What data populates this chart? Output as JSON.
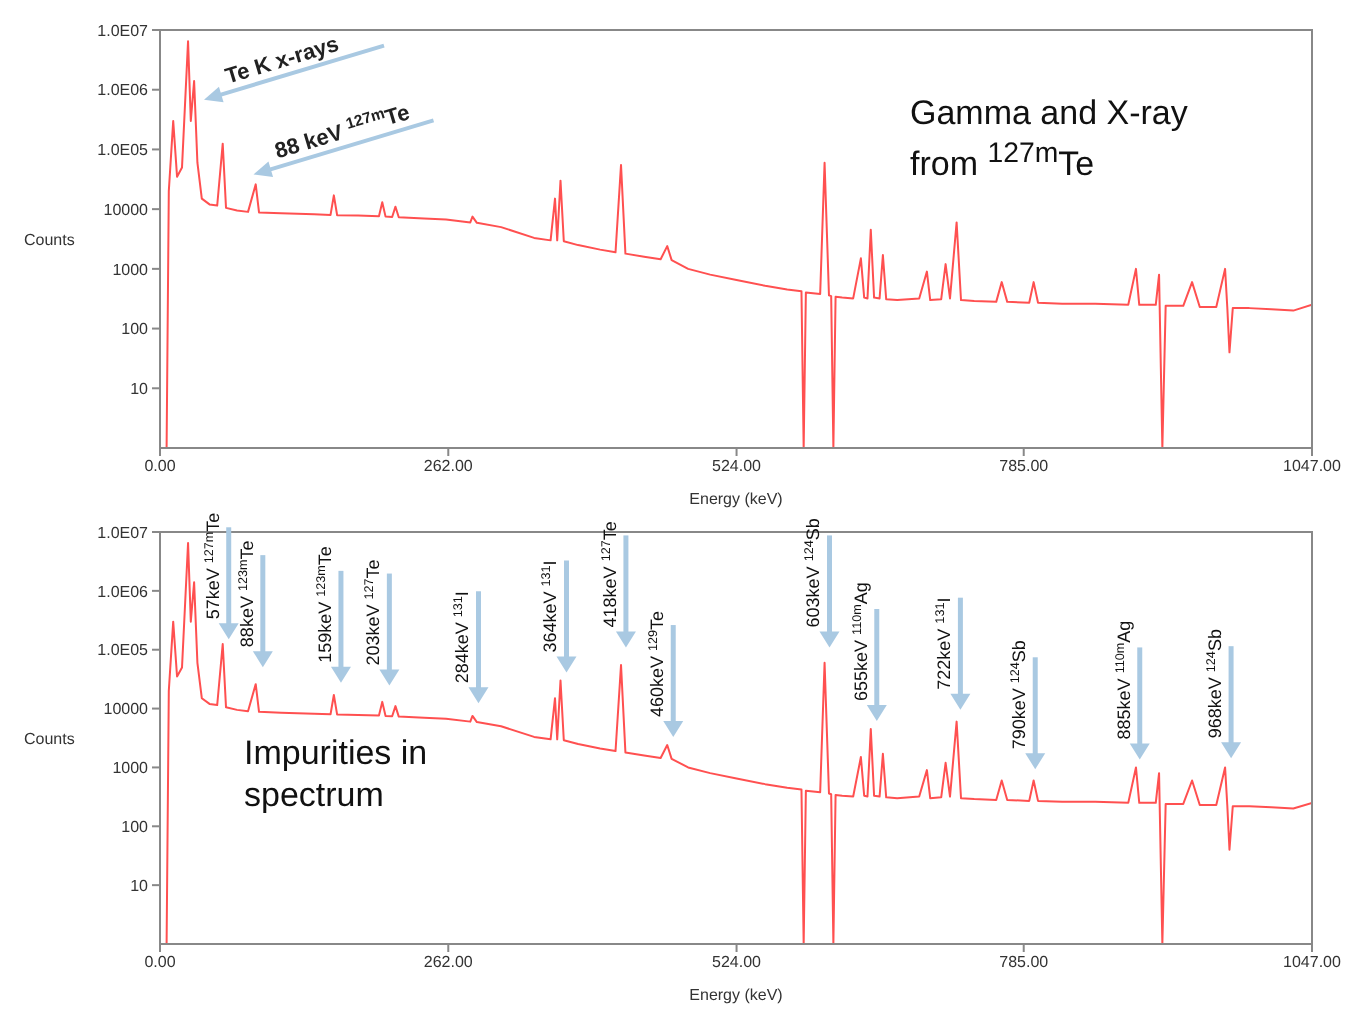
{
  "chart_data": [
    {
      "type": "line",
      "xlabel": "Energy (keV)",
      "ylabel": "Counts",
      "log": "y",
      "xlim": [
        0,
        1047
      ],
      "ylim": [
        1,
        10000000
      ],
      "xticks": [
        {
          "value": 0,
          "label": "0.00"
        },
        {
          "value": 262,
          "label": "262.00"
        },
        {
          "value": 524,
          "label": "524.00"
        },
        {
          "value": 785,
          "label": "785.00"
        },
        {
          "value": 1047,
          "label": "1047.00"
        }
      ],
      "yticks": [
        10,
        100,
        1000,
        10000,
        {
          "value": 100000,
          "label": "1.0E05"
        },
        {
          "value": 1000000,
          "label": "1.0E06"
        },
        {
          "value": 10000000,
          "label": "1.0E07"
        }
      ],
      "series": [
        {
          "color": "#ff5050",
          "x": [
            0,
            6,
            8,
            12,
            15.5,
            20,
            25.5,
            28,
            31,
            34,
            38,
            45,
            52,
            57,
            60,
            70,
            80,
            87,
            90,
            110,
            140,
            155,
            158,
            161,
            180,
            199,
            202,
            205,
            211,
            214,
            217,
            240,
            260,
            282,
            284,
            288,
            310,
            340,
            355,
            359,
            361,
            364,
            367,
            380,
            400,
            414,
            419,
            423,
            440,
            455,
            461,
            465,
            480,
            500,
            524,
            550,
            570,
            583,
            585,
            587,
            600,
            604,
            608,
            610,
            612,
            614,
            620,
            630,
            637,
            640,
            643,
            646,
            649,
            654,
            657,
            660,
            670,
            690,
            697,
            700,
            710,
            714,
            718,
            724,
            728,
            740,
            760,
            765,
            770,
            790,
            794,
            798,
            820,
            850,
            880,
            887,
            890,
            905,
            908,
            911,
            914,
            930,
            938,
            945,
            960,
            968,
            970,
            972,
            975,
            990,
            1010,
            1030,
            1047
          ],
          "values": [
            1,
            1,
            20000,
            300000,
            35000,
            50000,
            6500000,
            300000,
            1400000,
            60000,
            15000,
            12000,
            11500,
            125000,
            10500,
            9500,
            9000,
            26000,
            8800,
            8500,
            8200,
            8000,
            17000,
            7900,
            7800,
            7600,
            13000,
            7500,
            7400,
            11000,
            7300,
            7000,
            6700,
            6000,
            7500,
            5900,
            5000,
            3300,
            3000,
            15000,
            3000,
            30000,
            2900,
            2500,
            2100,
            1900,
            55000,
            1800,
            1600,
            1450,
            2400,
            1400,
            1000,
            800,
            650,
            520,
            450,
            420,
            1,
            400,
            380,
            60000,
            360,
            350,
            1,
            340,
            330,
            320,
            1500,
            330,
            320,
            4500,
            330,
            320,
            1700,
            310,
            300,
            320,
            900,
            300,
            310,
            1200,
            320,
            6000,
            300,
            290,
            280,
            600,
            280,
            270,
            600,
            270,
            260,
            260,
            250,
            1000,
            250,
            250,
            800,
            1,
            240,
            240,
            600,
            230,
            230,
            1000,
            230,
            40,
            220,
            220,
            210,
            200,
            250
          ]
        }
      ],
      "annotations": [
        {
          "text": "Te K x-rays",
          "x": 40,
          "y": 500000
        },
        {
          "text": "88 keV $^{127m}$Te",
          "x": 85,
          "y": 28000
        },
        "Gamma and X-ray from $^{127m}$Te"
      ]
    },
    {
      "type": "line",
      "xlabel": "Energy (keV)",
      "ylabel": "Counts",
      "log": "y",
      "xlim": [
        0,
        1047
      ],
      "ylim": [
        1,
        10000000
      ],
      "xticks": [
        {
          "value": 0,
          "label": "0.00"
        },
        {
          "value": 262,
          "label": "262.00"
        },
        {
          "value": 524,
          "label": "524.00"
        },
        {
          "value": 785,
          "label": "785.00"
        },
        {
          "value": 1047,
          "label": "1047.00"
        }
      ],
      "yticks": [
        10,
        100,
        1000,
        10000,
        {
          "value": 100000,
          "label": "1.0E05"
        },
        {
          "value": 1000000,
          "label": "1.0E06"
        },
        {
          "value": 10000000,
          "label": "1.0E07"
        }
      ],
      "series": [
        {
          "color": "#ff5050",
          "x": [
            0,
            6,
            8,
            12,
            15.5,
            20,
            25.5,
            28,
            31,
            34,
            38,
            45,
            52,
            57,
            60,
            70,
            80,
            87,
            90,
            110,
            140,
            155,
            158,
            161,
            180,
            199,
            202,
            205,
            211,
            214,
            217,
            240,
            260,
            282,
            284,
            288,
            310,
            340,
            355,
            359,
            361,
            364,
            367,
            380,
            400,
            414,
            419,
            423,
            440,
            455,
            461,
            465,
            480,
            500,
            524,
            550,
            570,
            583,
            585,
            587,
            600,
            604,
            608,
            610,
            612,
            614,
            620,
            630,
            637,
            640,
            643,
            646,
            649,
            654,
            657,
            660,
            670,
            690,
            697,
            700,
            710,
            714,
            718,
            724,
            728,
            740,
            760,
            765,
            770,
            790,
            794,
            798,
            820,
            850,
            880,
            887,
            890,
            905,
            908,
            911,
            914,
            930,
            938,
            945,
            960,
            968,
            970,
            972,
            975,
            990,
            1010,
            1030,
            1047
          ],
          "values": [
            1,
            1,
            20000,
            300000,
            35000,
            50000,
            6500000,
            300000,
            1400000,
            60000,
            15000,
            12000,
            11500,
            125000,
            10500,
            9500,
            9000,
            26000,
            8800,
            8500,
            8200,
            8000,
            17000,
            7900,
            7800,
            7600,
            13000,
            7500,
            7400,
            11000,
            7300,
            7000,
            6700,
            6000,
            7500,
            5900,
            5000,
            3300,
            3000,
            15000,
            3000,
            30000,
            2900,
            2500,
            2100,
            1900,
            55000,
            1800,
            1600,
            1450,
            2400,
            1400,
            1000,
            800,
            650,
            520,
            450,
            420,
            1,
            400,
            380,
            60000,
            360,
            350,
            1,
            340,
            330,
            320,
            1500,
            330,
            320,
            4500,
            330,
            320,
            1700,
            310,
            300,
            320,
            900,
            300,
            310,
            1200,
            320,
            6000,
            300,
            290,
            280,
            600,
            280,
            270,
            600,
            270,
            260,
            260,
            250,
            1000,
            250,
            250,
            800,
            1,
            240,
            240,
            600,
            230,
            230,
            1000,
            230,
            40,
            220,
            220,
            210,
            200,
            250
          ]
        }
      ],
      "annotations": [
        "Impurities in spectrum",
        {
          "text": "57keV $^{127m}$Te",
          "x": 57,
          "y": 110000
        },
        {
          "text": "88keV $^{123m}$Te",
          "x": 88,
          "y": 37000
        },
        {
          "text": "159keV $^{123m}$Te",
          "x": 159,
          "y": 20000
        },
        {
          "text": "203keV $^{127}$Te",
          "x": 203,
          "y": 18000
        },
        {
          "text": "284keV $^{131}$I",
          "x": 284,
          "y": 9000
        },
        {
          "text": "364keV $^{131}$I",
          "x": 364,
          "y": 30000
        },
        {
          "text": "418keV $^{127}$Te",
          "x": 418,
          "y": 80000
        },
        {
          "text": "460keV $^{129}$Te",
          "x": 461,
          "y": 2400
        },
        {
          "text": "603keV $^{124}$Sb",
          "x": 603,
          "y": 80000
        },
        {
          "text": "655keV $^{110m}$Ag",
          "x": 646,
          "y": 4500
        },
        {
          "text": "722keV $^{131}$I",
          "x": 722,
          "y": 7000
        },
        {
          "text": "790keV $^{124}$Sb",
          "x": 790,
          "y": 680
        },
        {
          "text": "885keV $^{110m}$Ag",
          "x": 885,
          "y": 1000
        },
        {
          "text": "968keV $^{124}$Sb",
          "x": 968,
          "y": 1050
        }
      ]
    }
  ]
}
